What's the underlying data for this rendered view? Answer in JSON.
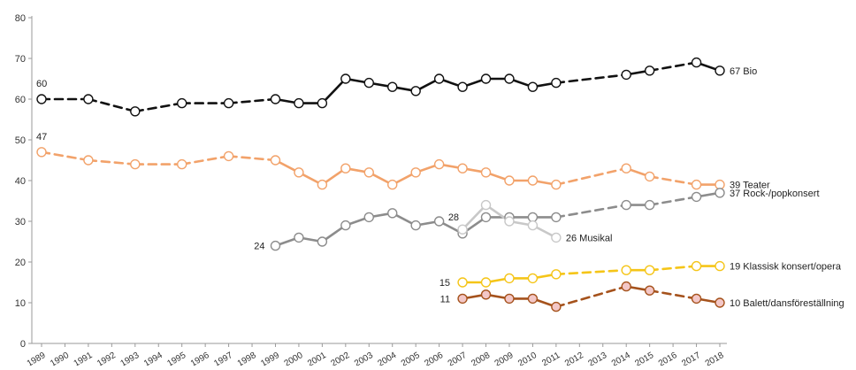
{
  "chart_data": {
    "type": "line",
    "title": "",
    "xlabel": "",
    "ylabel": "",
    "ylim": [
      0,
      80
    ],
    "yticks": [
      0,
      10,
      20,
      30,
      40,
      50,
      60,
      70,
      80
    ],
    "x": [
      "1989",
      "1990",
      "1991",
      "1992",
      "1993",
      "1994",
      "1995",
      "1996",
      "1997",
      "1998",
      "1999",
      "2000",
      "2001",
      "2002",
      "2003",
      "2004",
      "2005",
      "2006",
      "2007",
      "2008",
      "2009",
      "2010",
      "2011",
      "2012",
      "2013",
      "2014",
      "2015",
      "2016",
      "2017",
      "2018"
    ],
    "grid": false,
    "legend": "end-labels",
    "series": [
      {
        "name": "Bio",
        "end_label": "67 Bio",
        "start_label": "60",
        "color": "#111111",
        "marker_fill": "#ffffff",
        "points": [
          {
            "x": "1989",
            "y": 60
          },
          {
            "x": "1991",
            "y": 60
          },
          {
            "x": "1993",
            "y": 57
          },
          {
            "x": "1995",
            "y": 59
          },
          {
            "x": "1997",
            "y": 59
          },
          {
            "x": "1999",
            "y": 60
          },
          {
            "x": "2000",
            "y": 59
          },
          {
            "x": "2001",
            "y": 59
          },
          {
            "x": "2002",
            "y": 65
          },
          {
            "x": "2003",
            "y": 64
          },
          {
            "x": "2004",
            "y": 63
          },
          {
            "x": "2005",
            "y": 62
          },
          {
            "x": "2006",
            "y": 65
          },
          {
            "x": "2007",
            "y": 63
          },
          {
            "x": "2008",
            "y": 65
          },
          {
            "x": "2009",
            "y": 65
          },
          {
            "x": "2010",
            "y": 63
          },
          {
            "x": "2011",
            "y": 64
          },
          {
            "x": "2014",
            "y": 66
          },
          {
            "x": "2015",
            "y": 67
          },
          {
            "x": "2017",
            "y": 69
          },
          {
            "x": "2018",
            "y": 67
          }
        ]
      },
      {
        "name": "Teater",
        "end_label": "39 Teater",
        "start_label": "47",
        "color": "#F2A26A",
        "marker_fill": "#ffffff",
        "points": [
          {
            "x": "1989",
            "y": 47
          },
          {
            "x": "1991",
            "y": 45
          },
          {
            "x": "1993",
            "y": 44
          },
          {
            "x": "1995",
            "y": 44
          },
          {
            "x": "1997",
            "y": 46
          },
          {
            "x": "1999",
            "y": 45
          },
          {
            "x": "2000",
            "y": 42
          },
          {
            "x": "2001",
            "y": 39
          },
          {
            "x": "2002",
            "y": 43
          },
          {
            "x": "2003",
            "y": 42
          },
          {
            "x": "2004",
            "y": 39
          },
          {
            "x": "2005",
            "y": 42
          },
          {
            "x": "2006",
            "y": 44
          },
          {
            "x": "2007",
            "y": 43
          },
          {
            "x": "2008",
            "y": 42
          },
          {
            "x": "2009",
            "y": 40
          },
          {
            "x": "2010",
            "y": 40
          },
          {
            "x": "2011",
            "y": 39
          },
          {
            "x": "2014",
            "y": 43
          },
          {
            "x": "2015",
            "y": 41
          },
          {
            "x": "2017",
            "y": 39
          },
          {
            "x": "2018",
            "y": 39
          }
        ]
      },
      {
        "name": "Rock-/popkonsert",
        "end_label": "37 Rock-/popkonsert",
        "start_label": "24",
        "color": "#8C8C8C",
        "marker_fill": "#ffffff",
        "points": [
          {
            "x": "1999",
            "y": 24
          },
          {
            "x": "2000",
            "y": 26
          },
          {
            "x": "2001",
            "y": 25
          },
          {
            "x": "2002",
            "y": 29
          },
          {
            "x": "2003",
            "y": 31
          },
          {
            "x": "2004",
            "y": 32
          },
          {
            "x": "2005",
            "y": 29
          },
          {
            "x": "2006",
            "y": 30
          },
          {
            "x": "2007",
            "y": 27
          },
          {
            "x": "2008",
            "y": 31
          },
          {
            "x": "2009",
            "y": 31
          },
          {
            "x": "2010",
            "y": 31
          },
          {
            "x": "2011",
            "y": 31
          },
          {
            "x": "2014",
            "y": 34
          },
          {
            "x": "2015",
            "y": 34
          },
          {
            "x": "2017",
            "y": 36
          },
          {
            "x": "2018",
            "y": 37
          }
        ]
      },
      {
        "name": "Musikal",
        "end_label": "26 Musikal",
        "start_label": "28",
        "color": "#C8C8C8",
        "marker_fill": "#ffffff",
        "points": [
          {
            "x": "2007",
            "y": 28
          },
          {
            "x": "2008",
            "y": 34
          },
          {
            "x": "2009",
            "y": 30
          },
          {
            "x": "2010",
            "y": 29
          },
          {
            "x": "2011",
            "y": 26
          }
        ]
      },
      {
        "name": "Klassisk konsert/opera",
        "end_label": "19 Klassisk konsert/opera",
        "start_label": "15",
        "color": "#F5C518",
        "marker_fill": "#ffffff",
        "points": [
          {
            "x": "2007",
            "y": 15
          },
          {
            "x": "2008",
            "y": 15
          },
          {
            "x": "2009",
            "y": 16
          },
          {
            "x": "2010",
            "y": 16
          },
          {
            "x": "2011",
            "y": 17
          },
          {
            "x": "2014",
            "y": 18
          },
          {
            "x": "2015",
            "y": 18
          },
          {
            "x": "2017",
            "y": 19
          },
          {
            "x": "2018",
            "y": 19
          }
        ]
      },
      {
        "name": "Balett/dansföreställning",
        "end_label": "10 Balett/dansföreställning",
        "start_label": "11",
        "color": "#A5521C",
        "marker_fill": "#f3c7c7",
        "points": [
          {
            "x": "2007",
            "y": 11
          },
          {
            "x": "2008",
            "y": 12
          },
          {
            "x": "2009",
            "y": 11
          },
          {
            "x": "2010",
            "y": 11
          },
          {
            "x": "2011",
            "y": 9
          },
          {
            "x": "2014",
            "y": 14
          },
          {
            "x": "2015",
            "y": 13
          },
          {
            "x": "2017",
            "y": 11
          },
          {
            "x": "2018",
            "y": 10
          }
        ]
      }
    ]
  }
}
